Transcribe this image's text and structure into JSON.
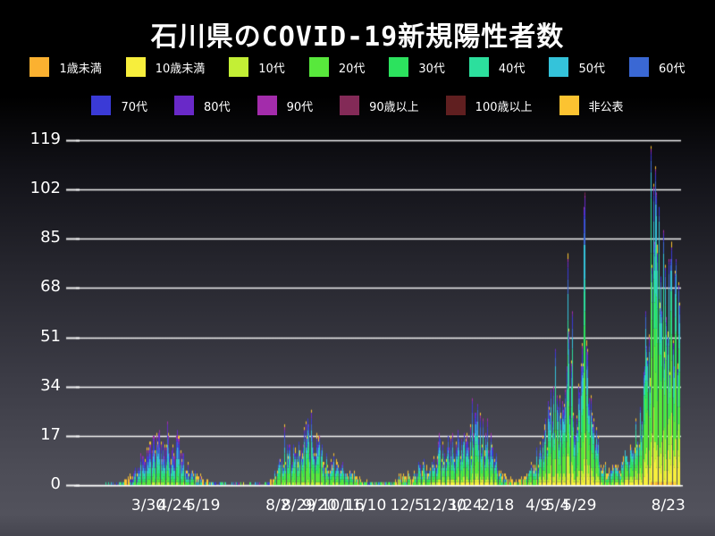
{
  "title": "石川県のCOVID-19新規陽性者数",
  "chart_data": {
    "type": "bar",
    "subtype": "stacked-daily-bars",
    "title": "石川県のCOVID-19新規陽性者数",
    "xlabel": "",
    "ylabel": "",
    "ylim": [
      0,
      119
    ],
    "y_ticks": [
      0,
      17,
      34,
      51,
      68,
      85,
      102,
      119
    ],
    "grid": "horizontal-white-lines",
    "legend_position": "top-two-rows",
    "x_ticks": [
      {
        "label": "3/30",
        "day": 66
      },
      {
        "label": "4/24",
        "day": 90
      },
      {
        "label": "5/19",
        "day": 116
      },
      {
        "label": "8/2",
        "day": 184
      },
      {
        "label": "8/29",
        "day": 203
      },
      {
        "label": "9/20",
        "day": 222
      },
      {
        "label": "10/16",
        "day": 243
      },
      {
        "label": "11/10",
        "day": 263
      },
      {
        "label": "12/5",
        "day": 302
      },
      {
        "label": "12/30",
        "day": 336
      },
      {
        "label": "1/24",
        "day": 355
      },
      {
        "label": "2/18",
        "day": 384
      },
      {
        "label": "4/9",
        "day": 421
      },
      {
        "label": "5/4",
        "day": 439
      },
      {
        "label": "5/29",
        "day": 459
      },
      {
        "label": "8/23",
        "day": 540
      }
    ],
    "series": [
      {
        "name": "1歳未満",
        "color": "#fbb130",
        "legend_row": 1
      },
      {
        "name": "10歳未満",
        "color": "#f7ee3c",
        "legend_row": 1
      },
      {
        "name": "10代",
        "color": "#c3ef35",
        "legend_row": 1
      },
      {
        "name": "20代",
        "color": "#58e83c",
        "legend_row": 1
      },
      {
        "name": "30代",
        "color": "#2ce25e",
        "legend_row": 1
      },
      {
        "name": "40代",
        "color": "#2cdf9d",
        "legend_row": 1
      },
      {
        "name": "50代",
        "color": "#34c3da",
        "legend_row": 1
      },
      {
        "name": "60代",
        "color": "#3a68d4",
        "legend_row": 1
      },
      {
        "name": "70代",
        "color": "#3a3ad6",
        "legend_row": 2
      },
      {
        "name": "80代",
        "color": "#6929c8",
        "legend_row": 2
      },
      {
        "name": "90代",
        "color": "#a32cab",
        "legend_row": 2
      },
      {
        "name": "90歳以上",
        "color": "#832a57",
        "legend_row": 2
      },
      {
        "name": "100歳以上",
        "color": "#601f20",
        "legend_row": 2
      },
      {
        "name": "非公表",
        "color": "#fcc331",
        "legend_row": 2
      }
    ],
    "days_total": 551,
    "envelope": [
      [
        0,
        0
      ],
      [
        25,
        0
      ],
      [
        30,
        0.3
      ],
      [
        40,
        0.6
      ],
      [
        46,
        1.5
      ],
      [
        50,
        3
      ],
      [
        55,
        6
      ],
      [
        60,
        9
      ],
      [
        66,
        12
      ],
      [
        72,
        15
      ],
      [
        78,
        13
      ],
      [
        84,
        17
      ],
      [
        88,
        12
      ],
      [
        92,
        14
      ],
      [
        97,
        9
      ],
      [
        102,
        6
      ],
      [
        108,
        4
      ],
      [
        114,
        2.5
      ],
      [
        120,
        1.2
      ],
      [
        128,
        0.6
      ],
      [
        136,
        0.4
      ],
      [
        146,
        0.3
      ],
      [
        156,
        0.3
      ],
      [
        166,
        0.4
      ],
      [
        171,
        0.3
      ],
      [
        176,
        1
      ],
      [
        180,
        3
      ],
      [
        184,
        6
      ],
      [
        188,
        8
      ],
      [
        192,
        12
      ],
      [
        196,
        10
      ],
      [
        200,
        14
      ],
      [
        205,
        11
      ],
      [
        209,
        16
      ],
      [
        214,
        19
      ],
      [
        218,
        13
      ],
      [
        222,
        16
      ],
      [
        226,
        10
      ],
      [
        230,
        7
      ],
      [
        234,
        9
      ],
      [
        238,
        6
      ],
      [
        242,
        7
      ],
      [
        246,
        4
      ],
      [
        250,
        5
      ],
      [
        254,
        3
      ],
      [
        258,
        2
      ],
      [
        263,
        1.5
      ],
      [
        268,
        0.8
      ],
      [
        274,
        0.5
      ],
      [
        280,
        0.6
      ],
      [
        286,
        0.8
      ],
      [
        290,
        1.5
      ],
      [
        295,
        3
      ],
      [
        300,
        4
      ],
      [
        305,
        3
      ],
      [
        310,
        5
      ],
      [
        315,
        7
      ],
      [
        320,
        6
      ],
      [
        326,
        9
      ],
      [
        331,
        13
      ],
      [
        336,
        10
      ],
      [
        341,
        14
      ],
      [
        346,
        12
      ],
      [
        351,
        16
      ],
      [
        356,
        13
      ],
      [
        361,
        18
      ],
      [
        365,
        22
      ],
      [
        369,
        17
      ],
      [
        373,
        20
      ],
      [
        377,
        15
      ],
      [
        381,
        10
      ],
      [
        385,
        6
      ],
      [
        390,
        3
      ],
      [
        395,
        2
      ],
      [
        400,
        1.5
      ],
      [
        405,
        2
      ],
      [
        410,
        3
      ],
      [
        414,
        5
      ],
      [
        418,
        8
      ],
      [
        422,
        12
      ],
      [
        426,
        16
      ],
      [
        430,
        22
      ],
      [
        434,
        26
      ],
      [
        437,
        30
      ],
      [
        440,
        24
      ],
      [
        443,
        28
      ],
      [
        446,
        34
      ],
      [
        449,
        40
      ],
      [
        452,
        30
      ],
      [
        455,
        24
      ],
      [
        458,
        30
      ],
      [
        461,
        38
      ],
      [
        464,
        46
      ],
      [
        467,
        32
      ],
      [
        470,
        24
      ],
      [
        473,
        18
      ],
      [
        476,
        12
      ],
      [
        479,
        8
      ],
      [
        483,
        5
      ],
      [
        487,
        4
      ],
      [
        491,
        6
      ],
      [
        495,
        5
      ],
      [
        499,
        8
      ],
      [
        503,
        10
      ],
      [
        507,
        14
      ],
      [
        511,
        18
      ],
      [
        515,
        24
      ],
      [
        519,
        32
      ],
      [
        522,
        45
      ],
      [
        525,
        65
      ],
      [
        528,
        80
      ],
      [
        531,
        70
      ],
      [
        534,
        60
      ],
      [
        537,
        55
      ],
      [
        540,
        65
      ],
      [
        543,
        58
      ],
      [
        546,
        68
      ],
      [
        550,
        62
      ]
    ],
    "spikes": [
      [
        84,
        18
      ],
      [
        190,
        21
      ],
      [
        214,
        26
      ],
      [
        361,
        30
      ],
      [
        366,
        28
      ],
      [
        437,
        47
      ],
      [
        448,
        80
      ],
      [
        452,
        60
      ],
      [
        463,
        96
      ],
      [
        464,
        101
      ],
      [
        519,
        60
      ],
      [
        524,
        117
      ],
      [
        526,
        104
      ],
      [
        528,
        110
      ],
      [
        531,
        96
      ],
      [
        535,
        88
      ],
      [
        538,
        58
      ],
      [
        540,
        78
      ],
      [
        543,
        84
      ],
      [
        546,
        74
      ],
      [
        549,
        70
      ],
      [
        550,
        63
      ]
    ],
    "age_profiles": [
      {
        "until": 175,
        "f": [
          0.002,
          0.015,
          0.03,
          0.1,
          0.12,
          0.14,
          0.15,
          0.14,
          0.12,
          0.1,
          0.06,
          0.015,
          0.004,
          0.004
        ]
      },
      {
        "until": 288,
        "f": [
          0.002,
          0.02,
          0.05,
          0.24,
          0.17,
          0.14,
          0.12,
          0.1,
          0.07,
          0.05,
          0.025,
          0.008,
          0.002,
          0.003
        ]
      },
      {
        "until": 410,
        "f": [
          0.003,
          0.05,
          0.07,
          0.19,
          0.15,
          0.13,
          0.12,
          0.1,
          0.08,
          0.05,
          0.03,
          0.012,
          0.003,
          0.002
        ]
      },
      {
        "until": 500,
        "f": [
          0.003,
          0.05,
          0.09,
          0.24,
          0.17,
          0.14,
          0.12,
          0.08,
          0.05,
          0.03,
          0.015,
          0.005,
          0.001,
          0.001
        ]
      },
      {
        "until": 551,
        "f": [
          0.008,
          0.1,
          0.1,
          0.3,
          0.16,
          0.13,
          0.1,
          0.05,
          0.025,
          0.012,
          0.006,
          0.002,
          0.001,
          0.008
        ]
      }
    ],
    "seed": 42,
    "colors": {
      "grid": "#ffffff",
      "axis_text": "#ffffff",
      "background_top": "#000000",
      "background_bottom": "#52525c"
    }
  }
}
